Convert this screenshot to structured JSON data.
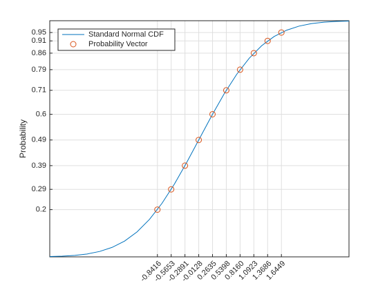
{
  "chart_data": {
    "type": "line",
    "ylabel": "Probability",
    "xlim": [
      -3,
      3
    ],
    "ylim": [
      0,
      1
    ],
    "grid": true,
    "legend": "northwest",
    "xticks": [
      -0.8416,
      -0.5653,
      -0.2891,
      -0.0128,
      0.2635,
      0.5398,
      {
        "value": 0.816,
        "label": "0.8160"
      },
      1.0923,
      1.3686,
      1.6449
    ],
    "yticks": [
      {
        "value": 0.2,
        "label": "0.2"
      },
      {
        "value": 0.2859,
        "label": "0.29"
      },
      {
        "value": 0.3863,
        "label": "0.39"
      },
      {
        "value": 0.4949,
        "label": "0.49"
      },
      {
        "value": 0.6039,
        "label": "0.6"
      },
      {
        "value": 0.7053,
        "label": "0.71"
      },
      {
        "value": 0.7927,
        "label": "0.79"
      },
      {
        "value": 0.8627,
        "label": "0.86"
      },
      {
        "value": 0.9145,
        "label": "0.91"
      },
      {
        "value": 0.95,
        "label": "0.95"
      }
    ],
    "series": [
      {
        "name": "Standard Normal CDF",
        "type": "line",
        "color": "#0072bd",
        "x": [
          -3,
          -2.75,
          -2.5,
          -2.25,
          -2,
          -1.75,
          -1.5,
          -1.25,
          -1,
          -0.75,
          -0.5,
          -0.25,
          0,
          0.25,
          0.5,
          0.75,
          1,
          1.25,
          1.5,
          1.75,
          2,
          2.25,
          2.5,
          2.75,
          3
        ],
        "values": [
          0.0013,
          0.003,
          0.0062,
          0.0122,
          0.0228,
          0.0401,
          0.0668,
          0.1056,
          0.1587,
          0.2266,
          0.3085,
          0.4013,
          0.5,
          0.5987,
          0.6915,
          0.7734,
          0.8413,
          0.8944,
          0.9332,
          0.9599,
          0.9772,
          0.9878,
          0.9938,
          0.997,
          0.9987
        ]
      },
      {
        "name": "Probability Vector",
        "type": "scatter",
        "color": "#d95319",
        "x": [
          -0.8416,
          -0.5653,
          -0.2891,
          -0.0128,
          0.2635,
          0.5398,
          0.816,
          1.0923,
          1.3686,
          1.6449
        ],
        "values": [
          0.2,
          0.2859,
          0.3863,
          0.4949,
          0.6039,
          0.7053,
          0.7927,
          0.8627,
          0.9145,
          0.95
        ]
      }
    ]
  }
}
